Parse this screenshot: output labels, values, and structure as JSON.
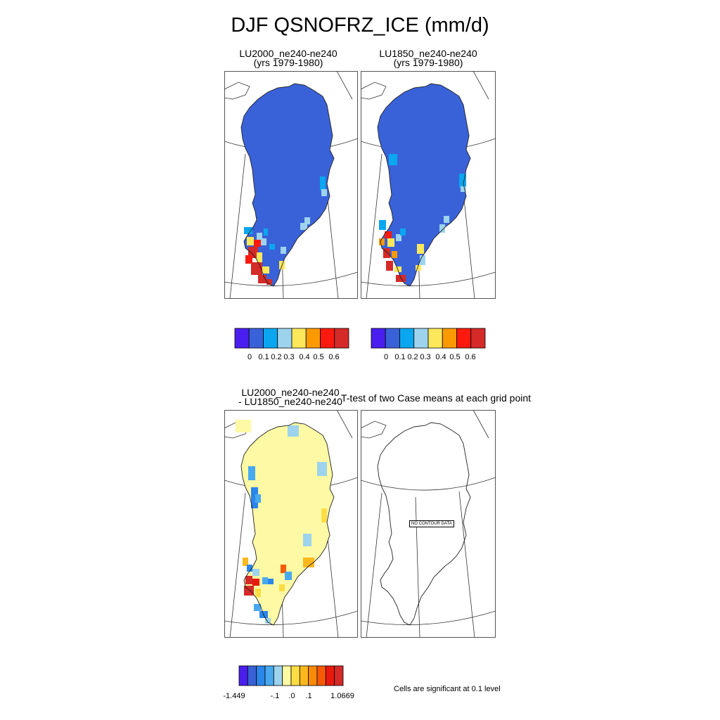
{
  "title": "DJF QSNOFRZ_ICE (mm/d)",
  "panels": [
    {
      "line1": "LU2000_ne240-ne240",
      "line2": "(yrs 1979-1980)"
    },
    {
      "line1": "LU1850_ne240-ne240",
      "line2": "(yrs 1979-1980)"
    },
    {
      "line1": "LU2000_ne240-ne240",
      "line2": "- LU1850_ne240-ne240"
    },
    {
      "line1": "T-test of two Case means at each grid point",
      "line2": ""
    }
  ],
  "no_data_label": "NO CONTOUR DATA",
  "significance_note": "Cells are significant at 0.1 level",
  "chart_data": [
    {
      "type": "heatmap",
      "title": "LU2000_ne240-ne240",
      "subtitle": "(yrs 1979-1980)",
      "colorbar": {
        "colors": [
          "#4a1eef",
          "#3a62d8",
          "#0aa6f0",
          "#9dd3ed",
          "#fde85c",
          "#fa9a00",
          "#fc1a0e",
          "#d42a28"
        ],
        "tick_labels": [
          "0",
          "0.1",
          "0.2",
          "0.3",
          "0.4",
          "0.5",
          "0.6"
        ]
      }
    },
    {
      "type": "heatmap",
      "title": "LU1850_ne240-ne240",
      "subtitle": "(yrs 1979-1980)",
      "colorbar": {
        "colors": [
          "#4a1eef",
          "#3a62d8",
          "#0aa6f0",
          "#9dd3ed",
          "#fde85c",
          "#fa9a00",
          "#fc1a0e",
          "#d42a28"
        ],
        "tick_labels": [
          "0",
          "0.1",
          "0.2",
          "0.3",
          "0.4",
          "0.5",
          "0.6"
        ]
      }
    },
    {
      "type": "heatmap",
      "title": "LU2000_ne240-ne240 - LU1850_ne240-ne240",
      "colorbar": {
        "colors": [
          "#4a1eef",
          "#3a62d8",
          "#2a86ea",
          "#47a9ef",
          "#9dd3ed",
          "#fdf9a4",
          "#fddd44",
          "#fbb81e",
          "#f98a0a",
          "#f65a05",
          "#e81a0e",
          "#d42a28"
        ],
        "tick_labels": [
          "-1.449",
          "-.1",
          ".0",
          ".1",
          "1.0669"
        ]
      }
    },
    {
      "type": "heatmap",
      "title": "T-test of two Case means at each grid point",
      "values": []
    }
  ]
}
